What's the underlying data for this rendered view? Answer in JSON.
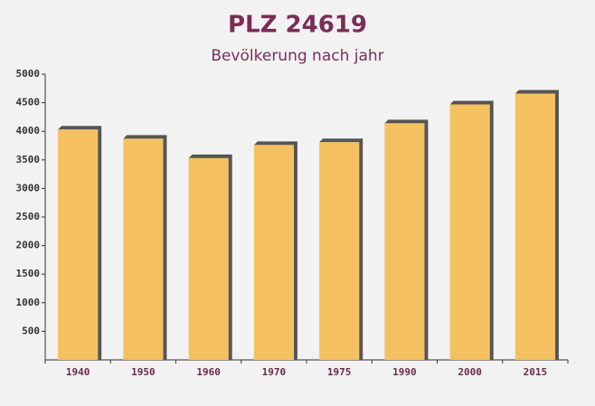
{
  "chart_data": {
    "type": "bar",
    "title": "PLZ 24619",
    "subtitle": "Bevölkerung nach jahr",
    "categories": [
      "1940",
      "1950",
      "1960",
      "1970",
      "1975",
      "1990",
      "2000",
      "2015"
    ],
    "values": [
      4030,
      3870,
      3530,
      3760,
      3810,
      4140,
      4470,
      4660
    ],
    "color": "#f5c060",
    "ylim": [
      0,
      5000
    ],
    "yticks": [
      500,
      1000,
      1500,
      2000,
      2500,
      3000,
      3500,
      4000,
      4500,
      5000
    ],
    "grid": false
  }
}
